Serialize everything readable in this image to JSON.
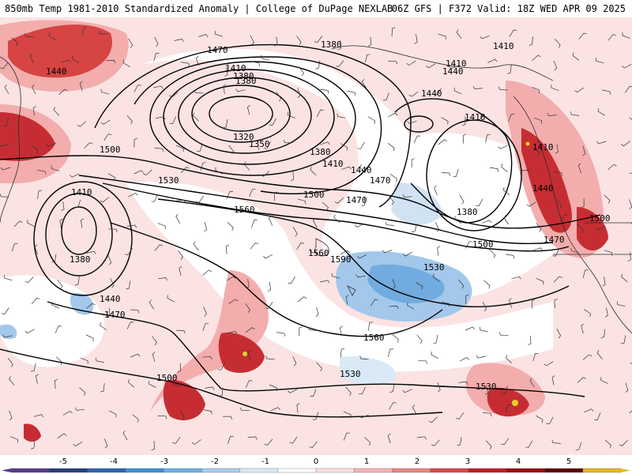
{
  "header": {
    "title": "850mb Temp 1981-2010 Standardized Anomaly | College of DuPage NEXLAB",
    "run_info": "06Z GFS | F372 Valid: 18Z WED APR 09 2025"
  },
  "contour_labels": [
    "1470",
    "1440",
    "1410",
    "1380",
    "1320",
    "1350",
    "1380",
    "1410",
    "1440",
    "1470",
    "1500",
    "1530",
    "1560",
    "1590",
    "1410",
    "1380",
    "1440",
    "1470",
    "1500",
    "1380",
    "1410",
    "1440",
    "1470",
    "1500",
    "1530",
    "1560",
    "1500",
    "1530",
    "1560",
    "1530",
    "1410",
    "1440",
    "1500",
    "1470",
    "1410",
    "1440",
    "1380",
    "1410",
    "1380"
  ],
  "colorbar": {
    "tick_labels": [
      "-5",
      "-4",
      "-3",
      "-2",
      "-1",
      "0",
      "1",
      "2",
      "3",
      "4",
      "5"
    ],
    "colors": [
      "#5a3a8c",
      "#27407a",
      "#2f64b4",
      "#3f8fd8",
      "#6fb0e4",
      "#a9cdee",
      "#d8e8f6",
      "#ffffff",
      "#fbe0e0",
      "#f5b3b3",
      "#ec8585",
      "#dc4848",
      "#c21e25",
      "#9c0d13",
      "#5c0306",
      "#e8b81e"
    ],
    "colors_semantic": "blue = below normal, red = above normal, yellow = extreme positive"
  }
}
